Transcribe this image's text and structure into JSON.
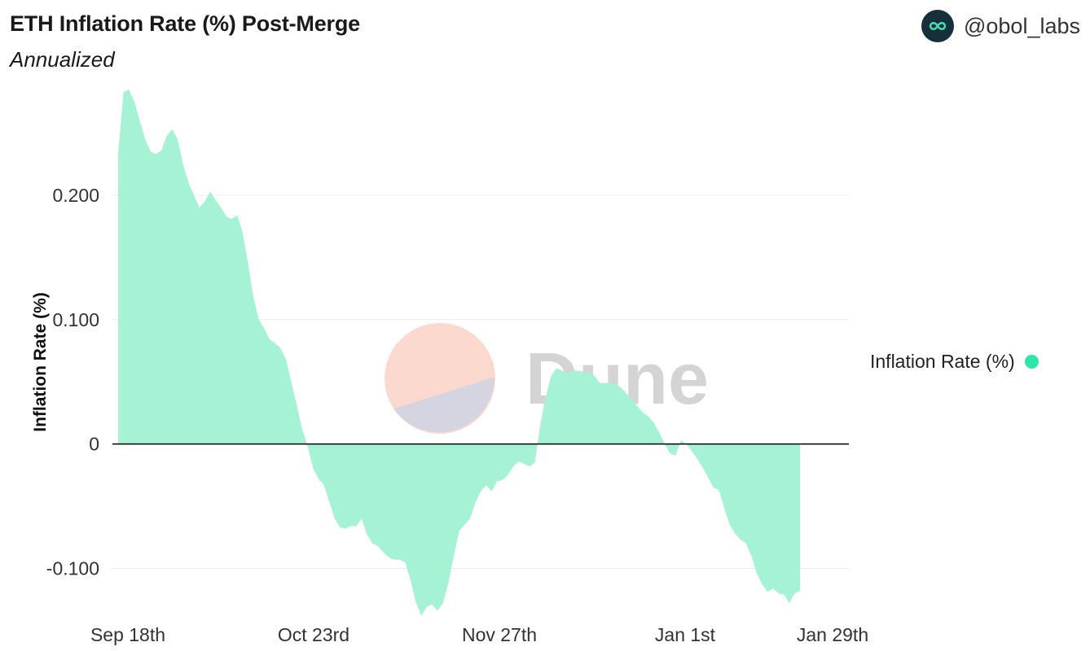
{
  "header": {
    "title": "ETH Inflation Rate (%) Post-Merge",
    "subtitle": "Annualized",
    "handle": "@obol_labs"
  },
  "watermark": {
    "text": "Dune"
  },
  "colors": {
    "area": "#a6f2d5",
    "legend_dot": "#2ee6a8",
    "zero_line": "#000000",
    "grid": "#ececec"
  },
  "chart_data": {
    "type": "area",
    "title": "ETH Inflation Rate (%) Post-Merge",
    "subtitle": "Annualized",
    "ylabel": "Inflation Rate (%)",
    "xlabel": "",
    "ylim": [
      -0.135,
      0.285
    ],
    "xlim": [
      "2022-09-18",
      "2023-01-31"
    ],
    "grid": true,
    "legend_position": "right",
    "x_ticks": [
      "Sep 18th",
      "Oct 23rd",
      "Nov 27th",
      "Jan 1st",
      "Jan 29th"
    ],
    "y_ticks": [
      {
        "value": 0.2,
        "label": "0.200"
      },
      {
        "value": 0.1,
        "label": "0.100"
      },
      {
        "value": 0,
        "label": "0"
      },
      {
        "value": -0.1,
        "label": "-0.100"
      }
    ],
    "series": [
      {
        "name": "Inflation Rate (%)",
        "points": [
          [
            "2022-09-18",
            0.233
          ],
          [
            "2022-09-19",
            0.283
          ],
          [
            "2022-09-20",
            0.285
          ],
          [
            "2022-09-21",
            0.275
          ],
          [
            "2022-09-22",
            0.26
          ],
          [
            "2022-09-23",
            0.245
          ],
          [
            "2022-09-24",
            0.235
          ],
          [
            "2022-09-25",
            0.233
          ],
          [
            "2022-09-26",
            0.236
          ],
          [
            "2022-09-27",
            0.248
          ],
          [
            "2022-09-28",
            0.253
          ],
          [
            "2022-09-29",
            0.245
          ],
          [
            "2022-09-30",
            0.225
          ],
          [
            "2022-10-01",
            0.21
          ],
          [
            "2022-10-02",
            0.2
          ],
          [
            "2022-10-03",
            0.19
          ],
          [
            "2022-10-04",
            0.195
          ],
          [
            "2022-10-05",
            0.203
          ],
          [
            "2022-10-06",
            0.196
          ],
          [
            "2022-10-07",
            0.19
          ],
          [
            "2022-10-08",
            0.183
          ],
          [
            "2022-10-09",
            0.181
          ],
          [
            "2022-10-10",
            0.184
          ],
          [
            "2022-10-11",
            0.17
          ],
          [
            "2022-10-12",
            0.145
          ],
          [
            "2022-10-13",
            0.118
          ],
          [
            "2022-10-14",
            0.1
          ],
          [
            "2022-10-15",
            0.093
          ],
          [
            "2022-10-16",
            0.084
          ],
          [
            "2022-10-17",
            0.081
          ],
          [
            "2022-10-18",
            0.077
          ],
          [
            "2022-10-19",
            0.068
          ],
          [
            "2022-10-20",
            0.05
          ],
          [
            "2022-10-21",
            0.031
          ],
          [
            "2022-10-22",
            0.012
          ],
          [
            "2022-10-23",
            -0.002
          ],
          [
            "2022-10-24",
            -0.019
          ],
          [
            "2022-10-25",
            -0.028
          ],
          [
            "2022-10-26",
            -0.033
          ],
          [
            "2022-10-27",
            -0.046
          ],
          [
            "2022-10-28",
            -0.06
          ],
          [
            "2022-10-29",
            -0.067
          ],
          [
            "2022-10-30",
            -0.068
          ],
          [
            "2022-10-31",
            -0.066
          ],
          [
            "2022-11-01",
            -0.066
          ],
          [
            "2022-11-02",
            -0.06
          ],
          [
            "2022-11-03",
            -0.073
          ],
          [
            "2022-11-04",
            -0.08
          ],
          [
            "2022-11-05",
            -0.082
          ],
          [
            "2022-11-06",
            -0.087
          ],
          [
            "2022-11-07",
            -0.091
          ],
          [
            "2022-11-08",
            -0.093
          ],
          [
            "2022-11-09",
            -0.093
          ],
          [
            "2022-11-10",
            -0.095
          ],
          [
            "2022-11-11",
            -0.109
          ],
          [
            "2022-11-12",
            -0.127
          ],
          [
            "2022-11-13",
            -0.138
          ],
          [
            "2022-11-14",
            -0.131
          ],
          [
            "2022-11-15",
            -0.129
          ],
          [
            "2022-11-16",
            -0.134
          ],
          [
            "2022-11-17",
            -0.128
          ],
          [
            "2022-11-18",
            -0.112
          ],
          [
            "2022-11-19",
            -0.09
          ],
          [
            "2022-11-20",
            -0.07
          ],
          [
            "2022-11-21",
            -0.065
          ],
          [
            "2022-11-22",
            -0.06
          ],
          [
            "2022-11-23",
            -0.047
          ],
          [
            "2022-11-24",
            -0.038
          ],
          [
            "2022-11-25",
            -0.033
          ],
          [
            "2022-11-26",
            -0.038
          ],
          [
            "2022-11-27",
            -0.03
          ],
          [
            "2022-11-28",
            -0.029
          ],
          [
            "2022-11-29",
            -0.025
          ],
          [
            "2022-11-30",
            -0.018
          ],
          [
            "2022-12-01",
            -0.014
          ],
          [
            "2022-12-02",
            -0.016
          ],
          [
            "2022-12-03",
            -0.018
          ],
          [
            "2022-12-04",
            -0.015
          ],
          [
            "2022-12-05",
            0.016
          ],
          [
            "2022-12-06",
            0.038
          ],
          [
            "2022-12-07",
            0.055
          ],
          [
            "2022-12-08",
            0.061
          ],
          [
            "2022-12-09",
            0.059
          ],
          [
            "2022-12-10",
            0.057
          ],
          [
            "2022-12-11",
            0.059
          ],
          [
            "2022-12-12",
            0.059
          ],
          [
            "2022-12-13",
            0.058
          ],
          [
            "2022-12-14",
            0.057
          ],
          [
            "2022-12-15",
            0.055
          ],
          [
            "2022-12-16",
            0.049
          ],
          [
            "2022-12-17",
            0.049
          ],
          [
            "2022-12-18",
            0.049
          ],
          [
            "2022-12-19",
            0.048
          ],
          [
            "2022-12-20",
            0.045
          ],
          [
            "2022-12-21",
            0.04
          ],
          [
            "2022-12-22",
            0.036
          ],
          [
            "2022-12-23",
            0.03
          ],
          [
            "2022-12-24",
            0.025
          ],
          [
            "2022-12-25",
            0.022
          ],
          [
            "2022-12-26",
            0.017
          ],
          [
            "2022-12-27",
            0.009
          ],
          [
            "2022-12-28",
            0.0
          ],
          [
            "2022-12-29",
            -0.008
          ],
          [
            "2022-12-30",
            -0.009
          ],
          [
            "2022-12-31",
            0.003
          ],
          [
            "2023-01-01",
            0.0
          ],
          [
            "2023-01-02",
            -0.006
          ],
          [
            "2023-01-03",
            -0.012
          ],
          [
            "2023-01-04",
            -0.019
          ],
          [
            "2023-01-05",
            -0.027
          ],
          [
            "2023-01-06",
            -0.035
          ],
          [
            "2023-01-07",
            -0.037
          ],
          [
            "2023-01-08",
            -0.052
          ],
          [
            "2023-01-09",
            -0.065
          ],
          [
            "2023-01-10",
            -0.072
          ],
          [
            "2023-01-11",
            -0.077
          ],
          [
            "2023-01-12",
            -0.08
          ],
          [
            "2023-01-13",
            -0.09
          ],
          [
            "2023-01-14",
            -0.104
          ],
          [
            "2023-01-15",
            -0.113
          ],
          [
            "2023-01-16",
            -0.119
          ],
          [
            "2023-01-17",
            -0.116
          ],
          [
            "2023-01-18",
            -0.12
          ],
          [
            "2023-01-19",
            -0.121
          ],
          [
            "2023-01-20",
            -0.128
          ],
          [
            "2023-01-21",
            -0.12
          ],
          [
            "2023-01-22",
            -0.118
          ]
        ]
      }
    ]
  }
}
